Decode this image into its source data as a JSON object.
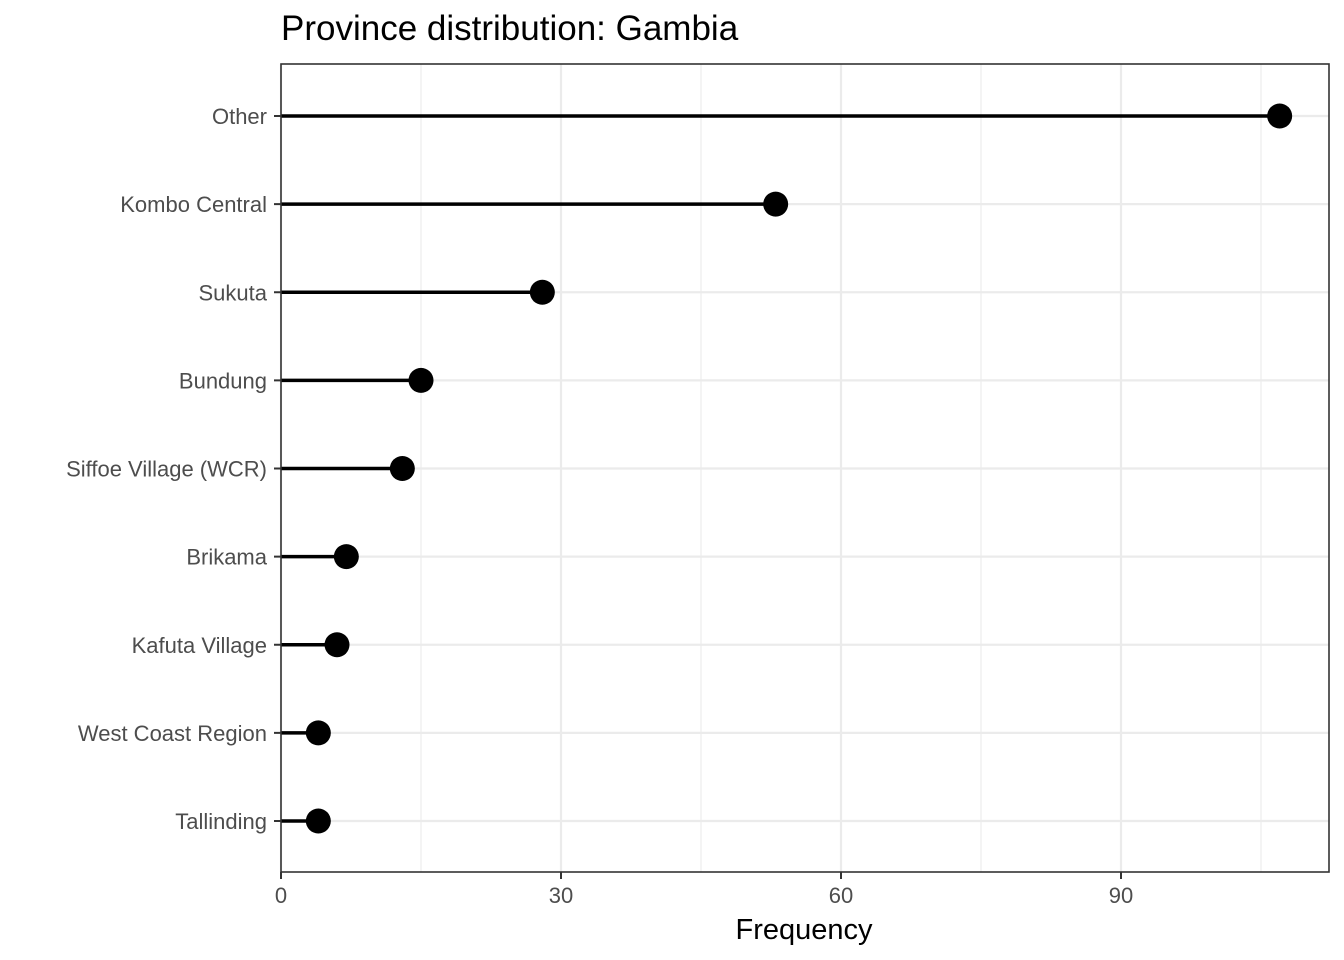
{
  "chart_data": {
    "type": "lollipop",
    "title": "Province distribution: Gambia",
    "xlabel": "Frequency",
    "ylabel": "",
    "categories": [
      "Other",
      "Kombo Central",
      "Sukuta",
      "Bundung",
      "Siffoe Village (WCR)",
      "Brikama",
      "Kafuta Village",
      "West Coast Region",
      "Tallinding"
    ],
    "values": [
      107,
      53,
      28,
      15,
      13,
      7,
      6,
      4,
      4
    ],
    "xlim": [
      0,
      110
    ],
    "x_ticks": [
      0,
      30,
      60,
      90
    ],
    "x_tick_labels": [
      "0",
      "30",
      "60",
      "90"
    ],
    "grid": true,
    "theme": "bw",
    "colors": {
      "marks": "#000000",
      "grid": "#ebebeb",
      "panel_border": "#333333",
      "tick_text": "#4d4d4d",
      "background": "#ffffff"
    }
  }
}
